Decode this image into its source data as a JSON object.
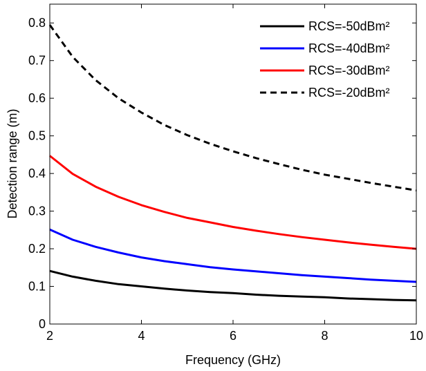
{
  "chart_data": {
    "type": "line",
    "title": "",
    "xlabel": "Frequency (GHz)",
    "ylabel": "Detection range (m)",
    "xlim": [
      2,
      10
    ],
    "ylim": [
      0,
      0.85
    ],
    "x_ticks": [
      2,
      4,
      6,
      8,
      10
    ],
    "x_tick_labels": [
      "2",
      "4",
      "6",
      "8",
      "10"
    ],
    "y_ticks": [
      0,
      0.1,
      0.2,
      0.3,
      0.4,
      0.5,
      0.6,
      0.7,
      0.8
    ],
    "y_tick_labels": [
      "0",
      "0.1",
      "0.2",
      "0.3",
      "0.4",
      "0.5",
      "0.6",
      "0.7",
      "0.8"
    ],
    "grid": false,
    "legend_position": "top-right",
    "x": [
      2,
      2.5,
      3,
      3.5,
      4,
      4.5,
      5,
      5.5,
      6,
      6.5,
      7,
      7.5,
      8,
      8.5,
      9,
      9.5,
      10
    ],
    "series": [
      {
        "name": "RCS=-50dBm²",
        "color": "#000000",
        "dash": "solid",
        "values": [
          0.141,
          0.126,
          0.115,
          0.106,
          0.1,
          0.094,
          0.089,
          0.085,
          0.082,
          0.078,
          0.075,
          0.073,
          0.071,
          0.068,
          0.066,
          0.064,
          0.063
        ]
      },
      {
        "name": "RCS=-40dBm²",
        "color": "#0000ff",
        "dash": "solid",
        "values": [
          0.251,
          0.224,
          0.205,
          0.19,
          0.177,
          0.167,
          0.159,
          0.151,
          0.145,
          0.14,
          0.135,
          0.13,
          0.126,
          0.122,
          0.118,
          0.115,
          0.112
        ]
      },
      {
        "name": "RCS=-30dBm²",
        "color": "#ff0000",
        "dash": "solid",
        "values": [
          0.447,
          0.399,
          0.365,
          0.338,
          0.316,
          0.298,
          0.282,
          0.27,
          0.258,
          0.248,
          0.239,
          0.231,
          0.224,
          0.217,
          0.211,
          0.205,
          0.2
        ]
      },
      {
        "name": "RCS=-20dBm²",
        "color": "#000000",
        "dash": "dashed",
        "values": [
          0.795,
          0.71,
          0.648,
          0.6,
          0.562,
          0.529,
          0.502,
          0.479,
          0.459,
          0.441,
          0.425,
          0.41,
          0.397,
          0.386,
          0.375,
          0.365,
          0.355
        ]
      }
    ]
  }
}
